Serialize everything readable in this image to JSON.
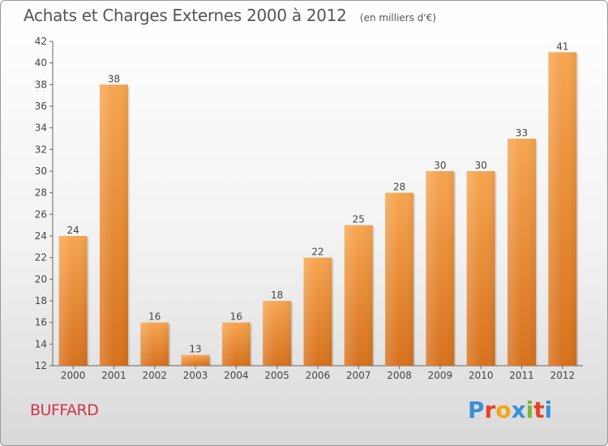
{
  "title": "Achats et Charges Externes 2000 à 2012",
  "unit": "(en milliers d'€)",
  "commune": "BUFFARD",
  "brand": {
    "letters": [
      "P",
      "r",
      "o",
      "x",
      "i",
      "t",
      "i"
    ],
    "colors": [
      "#3a8fd8",
      "#e8402a",
      "#f2a516",
      "#3a8fd8",
      "#7ab638",
      "#e8402a",
      "#3a8fd8"
    ]
  },
  "chart_data": {
    "type": "bar",
    "title": "Achats et Charges Externes 2000 à 2012",
    "xlabel": "",
    "ylabel": "",
    "categories": [
      "2000",
      "2001",
      "2002",
      "2003",
      "2004",
      "2005",
      "2006",
      "2007",
      "2008",
      "2009",
      "2010",
      "2011",
      "2012"
    ],
    "values": [
      24,
      38,
      16,
      13,
      16,
      18,
      22,
      25,
      28,
      30,
      30,
      33,
      41
    ],
    "ylim": [
      12,
      42
    ],
    "yticks": [
      12,
      14,
      16,
      18,
      20,
      22,
      24,
      26,
      28,
      30,
      32,
      34,
      36,
      38,
      40,
      42
    ],
    "grid": false,
    "bar_color": "#f0922f"
  }
}
